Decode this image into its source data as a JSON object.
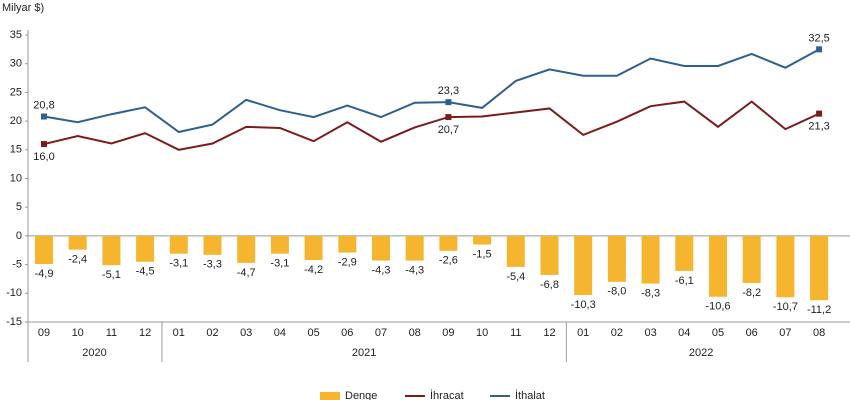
{
  "chart_data": {
    "type": "bar_line",
    "title": "Milyar $)",
    "categories": [
      "09",
      "10",
      "11",
      "12",
      "01",
      "02",
      "03",
      "04",
      "05",
      "06",
      "07",
      "08",
      "09",
      "10",
      "11",
      "12",
      "01",
      "02",
      "03",
      "04",
      "05",
      "06",
      "07",
      "08"
    ],
    "years": [
      {
        "label": "2020",
        "count": 4
      },
      {
        "label": "2021",
        "count": 12
      },
      {
        "label": "2022",
        "count": 8
      }
    ],
    "series": [
      {
        "name": "Denge",
        "kind": "bar",
        "color": "#f5b52e",
        "values": [
          -4.9,
          -2.4,
          -5.1,
          -4.5,
          -3.1,
          -3.3,
          -4.7,
          -3.1,
          -4.2,
          -2.9,
          -4.3,
          -4.3,
          -2.6,
          -1.5,
          -5.4,
          -6.8,
          -10.3,
          -8.0,
          -8.3,
          -6.1,
          -10.6,
          -8.2,
          -10.7,
          -11.2
        ],
        "value_labels": [
          "-4,9",
          "-2,4",
          "-5,1",
          "-4,5",
          "-3,1",
          "-3,3",
          "-4,7",
          "-3,1",
          "-4,2",
          "-2,9",
          "-4,3",
          "-4,3",
          "-2,6",
          "-1,5",
          "-5,4",
          "-6,8",
          "-10,3",
          "-8,0",
          "-8,3",
          "-6,1",
          "-10,6",
          "-8,2",
          "-10,7",
          "-11,2"
        ]
      },
      {
        "name": "İhracat",
        "kind": "line",
        "color": "#7b1c1c",
        "values": [
          16.0,
          17.4,
          16.1,
          17.9,
          15.0,
          16.1,
          19.0,
          18.8,
          16.5,
          19.8,
          16.4,
          18.9,
          20.7,
          20.8,
          21.5,
          22.2,
          17.6,
          19.9,
          22.6,
          23.4,
          19.0,
          23.4,
          18.6,
          21.3
        ],
        "value_labels": [
          "16,0",
          null,
          null,
          null,
          null,
          null,
          null,
          null,
          null,
          null,
          null,
          null,
          "20,7",
          null,
          null,
          null,
          null,
          null,
          null,
          null,
          null,
          null,
          null,
          "21,3"
        ]
      },
      {
        "name": "İthalat",
        "kind": "line",
        "color": "#2e5f8f",
        "values": [
          20.8,
          19.8,
          21.2,
          22.4,
          18.1,
          19.4,
          23.7,
          21.9,
          20.7,
          22.7,
          20.7,
          23.2,
          23.3,
          22.3,
          27.0,
          29.0,
          27.9,
          27.9,
          30.9,
          29.6,
          29.6,
          31.7,
          29.3,
          32.5
        ],
        "value_labels": [
          "20,8",
          null,
          null,
          null,
          null,
          null,
          null,
          null,
          null,
          null,
          null,
          null,
          "23,3",
          null,
          null,
          null,
          null,
          null,
          null,
          null,
          null,
          null,
          null,
          "32,5"
        ]
      }
    ],
    "ylim": [
      -15,
      35
    ],
    "yticks": [
      -15,
      -10,
      -5,
      0,
      5,
      10,
      15,
      20,
      25,
      30,
      35
    ],
    "grid": false
  }
}
